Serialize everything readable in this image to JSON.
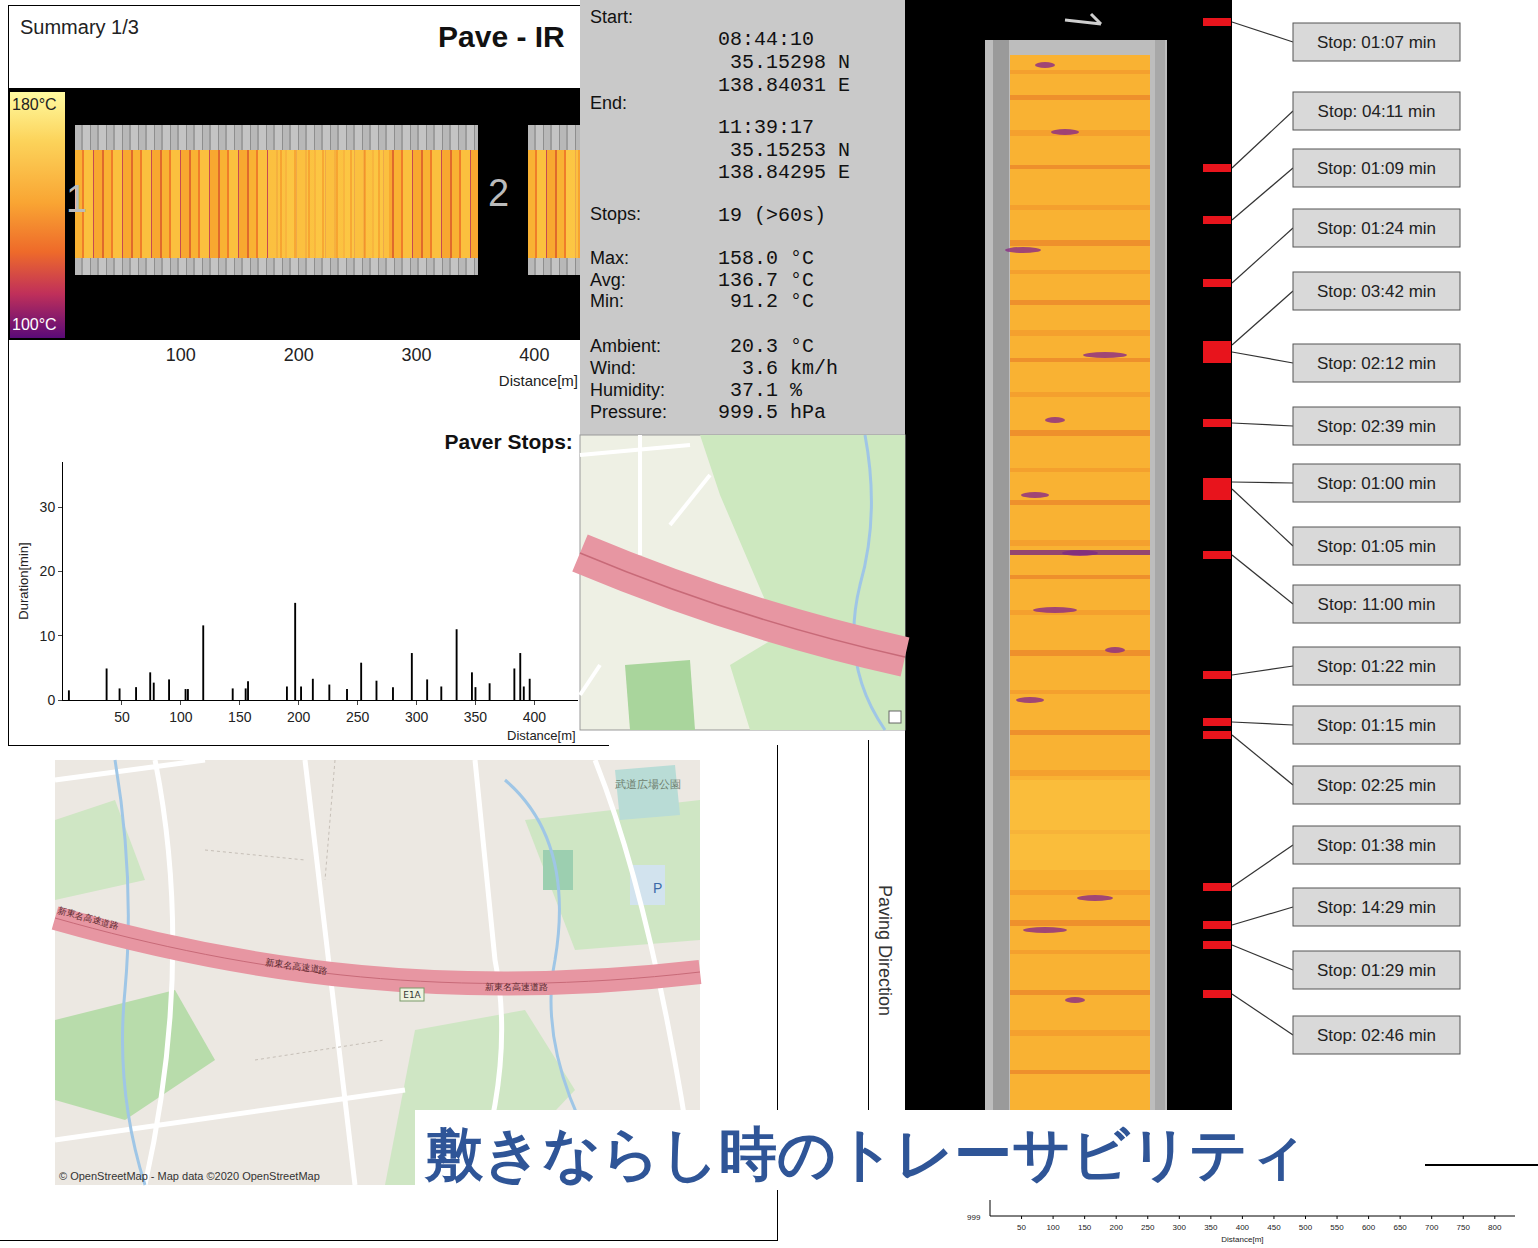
{
  "caption": "敷きならし時のトレーサビリティ",
  "summary": {
    "page": "Summary 1/3",
    "title": "Pave - IR",
    "colorbar": [
      {
        "value": 180,
        "label": "180°C"
      },
      {
        "value": 100,
        "label": "100°C"
      }
    ],
    "section_labels": [
      "1",
      "2"
    ],
    "xticks": [
      100,
      200,
      300,
      400
    ],
    "xlabel": "Distance[m]"
  },
  "info": {
    "start": {
      "label": "Start:",
      "lines": [
        "08:44:10",
        "35.15298 N",
        "138.84031 E"
      ]
    },
    "end": {
      "label": "End:",
      "lines": [
        "11:39:17",
        "35.15253 N",
        "138.84295 E"
      ]
    },
    "stops": {
      "label": "Stops:",
      "value": "19 (>60s)"
    },
    "temperatures": [
      {
        "label": "Max:",
        "value": "158.0 °C"
      },
      {
        "label": "Avg:",
        "value": "136.7 °C"
      },
      {
        "label": "Min:",
        "value": "91.2 °C"
      }
    ],
    "weather": [
      {
        "label": "Ambient:",
        "value": "20.3 °C"
      },
      {
        "label": "Wind:",
        "value": "3.6 km/h"
      },
      {
        "label": "Humidity:",
        "value": "37.1 %"
      },
      {
        "label": "Pressure:",
        "value": "999.5 hPa"
      }
    ]
  },
  "chart_data": {
    "type": "bar",
    "title": "Paver Stops:",
    "x": [
      5,
      37,
      48,
      62,
      74,
      77,
      90,
      104,
      106,
      119,
      144,
      155,
      157,
      190,
      197,
      202,
      212,
      226,
      241,
      253,
      266,
      280,
      296,
      309,
      321,
      334,
      347,
      350,
      362,
      383,
      388,
      391,
      396
    ],
    "values": [
      1.5,
      4.9,
      1.8,
      2.0,
      4.3,
      2.7,
      3.2,
      1.7,
      1.7,
      11.6,
      1.8,
      1.8,
      2.9,
      2.1,
      15.1,
      2.1,
      3.3,
      2.4,
      1.7,
      5.8,
      3.0,
      2.0,
      7.3,
      3.2,
      2.1,
      11.0,
      4.3,
      2.0,
      2.6,
      4.9,
      7.3,
      2.1,
      3.3
    ],
    "color": "#000000",
    "xlim": [
      0,
      437
    ],
    "ylim": [
      0,
      37
    ],
    "xticks": [
      50,
      100,
      150,
      200,
      250,
      300,
      350,
      400
    ],
    "yticks": [
      0,
      10,
      20,
      30
    ],
    "x_label": "Distance[m]",
    "y_label": "Duration[min]",
    "grid": false
  },
  "big_map": {
    "highway": "新東名高速道路",
    "route": "E1A",
    "park": "武道広場公園",
    "parking": "P",
    "attribution": "© OpenStreetMap - Map data ©2020 OpenStreetMap"
  },
  "strip": {
    "direction_label": "Paving Direction",
    "stop_labels": [
      "Stop: 01:07 min",
      "Stop: 04:11 min",
      "Stop: 01:09 min",
      "Stop: 01:24 min",
      "Stop: 03:42 min",
      "Stop: 02:12 min",
      "Stop: 02:39 min",
      "Stop: 01:00 min",
      "Stop: 01:05 min",
      "Stop: 11:00 min",
      "Stop: 01:22 min",
      "Stop: 01:15 min",
      "Stop: 02:25 min",
      "Stop: 01:38 min",
      "Stop: 14:29 min",
      "Stop: 01:29 min",
      "Stop: 02:46 min"
    ]
  },
  "bottom_axis": {
    "corner_label": "999",
    "xticks": [
      50,
      100,
      150,
      200,
      250,
      300,
      350,
      400,
      450,
      500,
      550,
      600,
      650,
      700,
      750,
      800
    ],
    "xlabel": "Distance[m]"
  }
}
